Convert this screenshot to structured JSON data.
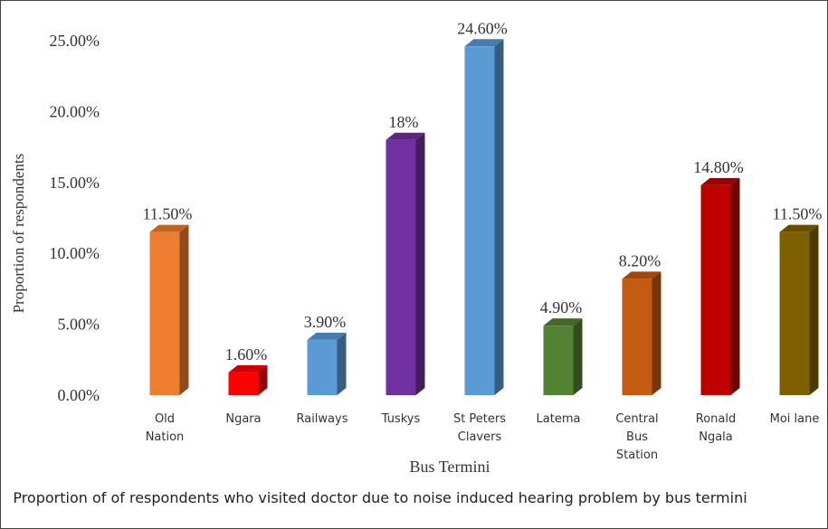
{
  "chart_data": {
    "type": "bar3d",
    "title": "Proportion of of respondents who visited doctor due to noise induced hearing problem by bus termini",
    "x_label": "Bus Termini",
    "y_label": "Proportion of respondents",
    "categories": [
      "Old Nation",
      "Ngara",
      "Railways",
      "Tuskys",
      "St Peters Clavers",
      "Latema",
      "Central Bus Station",
      "Ronald Ngala",
      "Moi lane"
    ],
    "values": [
      11.5,
      1.6,
      3.9,
      18,
      24.6,
      4.9,
      8.2,
      14.8,
      11.5
    ],
    "value_labels": [
      "11.50%",
      "1.60%",
      "3.90%",
      "18%",
      "24.60%",
      "4.90%",
      "8.20%",
      "14.80%",
      "11.50%"
    ],
    "colors": [
      "#ED7D31",
      "#FF0000",
      "#5B9BD5",
      "#7030A0",
      "#5B9BD5",
      "#548235",
      "#C55A11",
      "#C00000",
      "#7F6000"
    ],
    "ylim": [
      0,
      25
    ],
    "yticks": [
      {
        "value": 0,
        "label": "0.00%"
      },
      {
        "value": 5,
        "label": "5.00%"
      },
      {
        "value": 10,
        "label": "10.00%"
      },
      {
        "value": 15,
        "label": "15.00%"
      },
      {
        "value": 20,
        "label": "20.00%"
      },
      {
        "value": 25,
        "label": "25.00%"
      }
    ]
  }
}
